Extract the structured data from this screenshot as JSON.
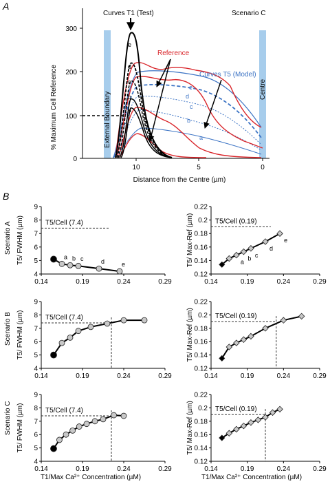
{
  "panel_a": {
    "letter": "A",
    "scenario_label": "Scenario C",
    "ylabel": "% Maximum Cell Reference",
    "xlabel": "Distance from the Centre (µm)",
    "y_ticks": [
      "0",
      "100",
      "200",
      "300"
    ],
    "x_ticks": [
      "10",
      "5",
      "0"
    ],
    "boundary_label": "External Boundary",
    "centre_label": "Centre",
    "annotations": {
      "t1": "Curves T1 (Test)",
      "reference": "Reference",
      "t5": "Curves T5 (Model)"
    },
    "curve_letters_t1": [
      "e",
      "d",
      "c",
      "b",
      "a"
    ],
    "curve_letters_t5": [
      "e",
      "d",
      "c",
      "b",
      "a"
    ],
    "colors": {
      "t1": "#000000",
      "reference": "#d9262b",
      "t5": "#3b73c4",
      "boundary": "#a7cdec"
    }
  },
  "panel_b": {
    "letter": "B",
    "row_labels": [
      "Scenario A",
      "Scenario B",
      "Scenario C"
    ],
    "ylabel_left": "T5/ FWHM (µm)",
    "ylabel_right": "T5/ Max-Ref (µm)",
    "xlabel": "T1/Max Ca²⁺ Concentration (µM)",
    "x_ticks": [
      "0.14",
      "0.19",
      "0.24",
      "0.29"
    ],
    "y_ticks_left": [
      "4",
      "5",
      "6",
      "7",
      "8",
      "9"
    ],
    "y_ticks_right": [
      "0.12",
      "0.14",
      "0.16",
      "0.18",
      "0.2",
      "0.22"
    ],
    "ref_left": "T5/Cell (7.4)",
    "ref_right": "T5/Cell (0.19)",
    "point_letters": [
      "a",
      "b",
      "c",
      "d",
      "e"
    ]
  },
  "chart_data": [
    {
      "type": "line",
      "title": "Scenario C",
      "xlabel": "Distance from the Centre (µm)",
      "ylabel": "% Maximum Cell Reference",
      "xlim": [
        12.5,
        0
      ],
      "ylim": [
        0,
        350
      ],
      "series": [
        {
          "name": "Curves T1 (Test)",
          "x": [
            12,
            11,
            10.5,
            10,
            9,
            8
          ],
          "values": [
            0,
            120,
            290,
            200,
            40,
            5
          ]
        },
        {
          "name": "Reference",
          "x": [
            12,
            11,
            10,
            8,
            6,
            4,
            1,
            0
          ],
          "values": [
            0,
            60,
            190,
            170,
            170,
            115,
            80,
            80
          ]
        },
        {
          "name": "Curves T5 (Model)",
          "x": [
            11,
            10,
            8,
            6,
            4,
            2,
            0
          ],
          "values": [
            60,
            210,
            200,
            195,
            185,
            150,
            105
          ]
        }
      ]
    },
    {
      "type": "line",
      "title": "Scenario A",
      "xlabel": "",
      "ylabel": "T5/ FWHM (µm)",
      "xlim": [
        0.14,
        0.29
      ],
      "ylim": [
        4,
        9
      ],
      "series": [
        {
          "x": [
            0.155,
            0.165,
            0.175,
            0.185,
            0.21,
            0.235
          ],
          "values": [
            5.1,
            4.75,
            4.65,
            4.6,
            4.4,
            4.2
          ]
        }
      ],
      "reference_line": {
        "label": "T5/Cell (7.4)",
        "y": 7.4
      }
    },
    {
      "type": "line",
      "title": "Scenario A",
      "xlabel": "",
      "ylabel": "T5/ Max-Ref (µm)",
      "xlim": [
        0.14,
        0.29
      ],
      "ylim": [
        0.12,
        0.22
      ],
      "series": [
        {
          "x": [
            0.155,
            0.165,
            0.175,
            0.185,
            0.195,
            0.215,
            0.235
          ],
          "values": [
            0.134,
            0.143,
            0.148,
            0.153,
            0.158,
            0.168,
            0.18
          ]
        }
      ],
      "reference_line": {
        "label": "T5/Cell (0.19)",
        "y": 0.19
      }
    },
    {
      "type": "line",
      "title": "Scenario B",
      "xlabel": "",
      "ylabel": "T5/ FWHM (µm)",
      "xlim": [
        0.14,
        0.29
      ],
      "ylim": [
        4,
        9
      ],
      "series": [
        {
          "x": [
            0.155,
            0.165,
            0.175,
            0.185,
            0.2,
            0.22,
            0.24,
            0.265
          ],
          "values": [
            5.0,
            5.9,
            6.3,
            6.8,
            7.1,
            7.35,
            7.6,
            7.6
          ]
        }
      ],
      "reference_line": {
        "label": "T5/Cell (7.4)",
        "y": 7.4,
        "x": 0.225
      }
    },
    {
      "type": "line",
      "title": "Scenario B",
      "xlabel": "",
      "ylabel": "T5/ Max-Ref (µm)",
      "xlim": [
        0.14,
        0.29
      ],
      "ylim": [
        0.12,
        0.22
      ],
      "series": [
        {
          "x": [
            0.155,
            0.165,
            0.175,
            0.185,
            0.195,
            0.215,
            0.24,
            0.265
          ],
          "values": [
            0.135,
            0.152,
            0.158,
            0.163,
            0.168,
            0.18,
            0.192,
            0.198
          ]
        }
      ],
      "reference_line": {
        "label": "T5/Cell (0.19)",
        "y": 0.19,
        "x": 0.23
      }
    },
    {
      "type": "line",
      "title": "Scenario C",
      "xlabel": "T1/Max Ca²⁺ Concentration (µM)",
      "ylabel": "T5/ FWHM (µm)",
      "xlim": [
        0.14,
        0.29
      ],
      "ylim": [
        4,
        9
      ],
      "series": [
        {
          "x": [
            0.155,
            0.162,
            0.17,
            0.178,
            0.186,
            0.195,
            0.205,
            0.215,
            0.228,
            0.24
          ],
          "values": [
            4.95,
            5.6,
            6.0,
            6.3,
            6.6,
            6.8,
            7.0,
            7.15,
            7.45,
            7.4
          ]
        }
      ],
      "reference_line": {
        "label": "T5/Cell (7.4)",
        "y": 7.4,
        "x": 0.225
      }
    },
    {
      "type": "line",
      "title": "Scenario C",
      "xlabel": "T1/Max Ca²⁺ Concentration (µM)",
      "ylabel": "T5/ Max-Ref (µm)",
      "xlim": [
        0.14,
        0.29
      ],
      "ylim": [
        0.12,
        0.22
      ],
      "series": [
        {
          "x": [
            0.155,
            0.165,
            0.175,
            0.185,
            0.195,
            0.205,
            0.215,
            0.225,
            0.235
          ],
          "values": [
            0.155,
            0.162,
            0.168,
            0.173,
            0.178,
            0.182,
            0.186,
            0.193,
            0.198
          ]
        }
      ],
      "reference_line": {
        "label": "T5/Cell (0.19)",
        "y": 0.19,
        "x": 0.215
      }
    }
  ]
}
